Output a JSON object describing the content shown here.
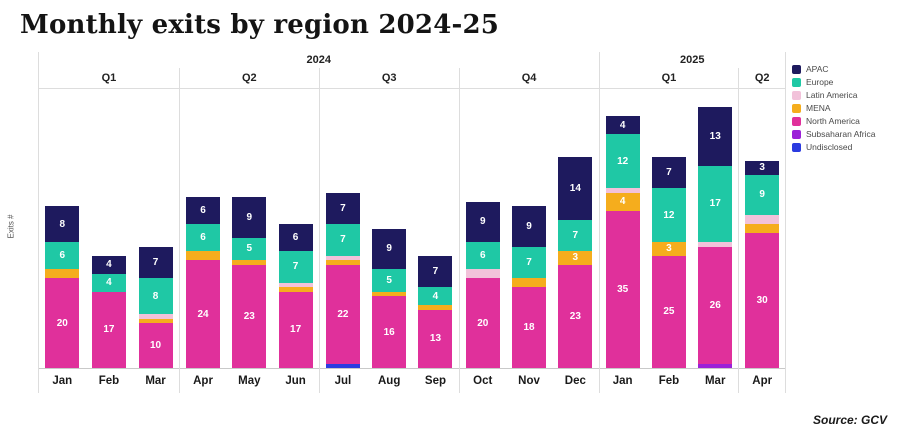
{
  "title": "Monthly exits by region 2024-25",
  "source": "Source: GCV",
  "chart_data": {
    "type": "bar",
    "stacked": true,
    "title": "Monthly exits by region 2024-25",
    "xlabel": "",
    "ylabel": "Exits #",
    "grid": false,
    "legend_position": "right",
    "label_min_value": 3,
    "categories": [
      "Jan",
      "Feb",
      "Mar",
      "Apr",
      "May",
      "Jun",
      "Jul",
      "Aug",
      "Sep",
      "Oct",
      "Nov",
      "Dec",
      "Jan",
      "Feb",
      "Mar",
      "Apr"
    ],
    "years": [
      {
        "label": "2024",
        "quarters": [
          {
            "label": "Q1",
            "months": [
              0,
              1,
              2
            ]
          },
          {
            "label": "Q2",
            "months": [
              3,
              4,
              5
            ]
          },
          {
            "label": "Q3",
            "months": [
              6,
              7,
              8
            ]
          },
          {
            "label": "Q4",
            "months": [
              9,
              10,
              11
            ]
          }
        ]
      },
      {
        "label": "2025",
        "quarters": [
          {
            "label": "Q1",
            "months": [
              12,
              13,
              14
            ]
          },
          {
            "label": "Q2",
            "months": [
              15
            ]
          }
        ]
      }
    ],
    "series": [
      {
        "name": "APAC",
        "color": "#1e1a5e",
        "values": [
          8,
          4,
          7,
          6,
          9,
          6,
          7,
          9,
          7,
          9,
          9,
          14,
          4,
          7,
          13,
          3
        ]
      },
      {
        "name": "Europe",
        "color": "#1fc8a5",
        "values": [
          6,
          4,
          8,
          6,
          5,
          7,
          7,
          5,
          4,
          6,
          7,
          7,
          12,
          12,
          17,
          9
        ]
      },
      {
        "name": "Latin America",
        "color": "#f2c2da",
        "values": [
          0,
          0,
          1,
          0,
          0,
          1,
          1,
          0,
          0,
          2,
          0,
          0,
          1,
          0,
          1,
          2
        ]
      },
      {
        "name": "MENA",
        "color": "#f5ad1d",
        "values": [
          2,
          0,
          1,
          2,
          1,
          1,
          1,
          1,
          1,
          0,
          2,
          3,
          4,
          3,
          0,
          2
        ]
      },
      {
        "name": "North America",
        "color": "#e0309b",
        "values": [
          20,
          17,
          10,
          24,
          23,
          17,
          22,
          16,
          13,
          20,
          18,
          23,
          35,
          25,
          26,
          30
        ]
      },
      {
        "name": "Subsaharan Africa",
        "color": "#9b21d8",
        "values": [
          0,
          0,
          0,
          0,
          0,
          0,
          0,
          0,
          0,
          0,
          0,
          0,
          0,
          0,
          1,
          0
        ]
      },
      {
        "name": "Undisclosed",
        "color": "#2b3be0",
        "values": [
          0,
          0,
          0,
          0,
          0,
          0,
          1,
          0,
          0,
          0,
          0,
          0,
          0,
          0,
          0,
          0
        ]
      }
    ]
  }
}
